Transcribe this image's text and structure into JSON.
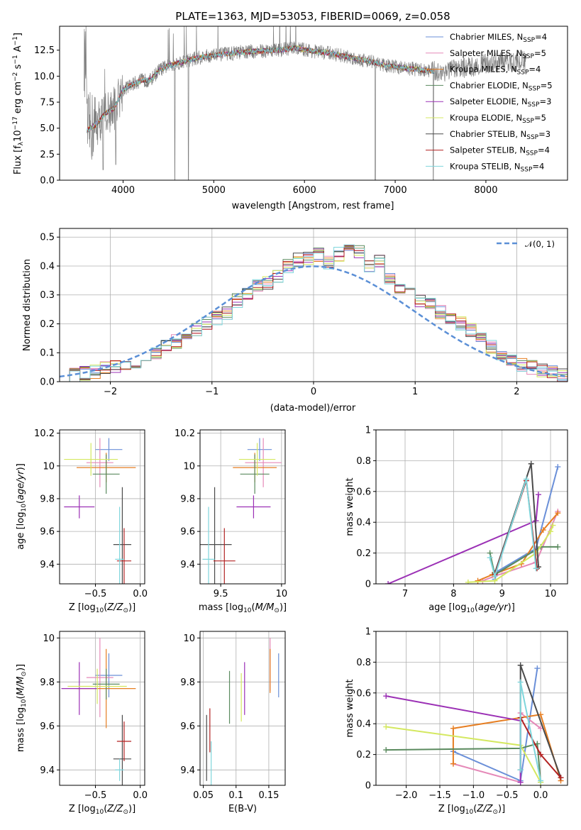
{
  "colors": {
    "Chabrier MILES": "#6a8fd8",
    "Salpeter MILES": "#e589b8",
    "Kroupa MILES": "#e67e22",
    "Chabrier ELODIE": "#5a8a5e",
    "Salpeter ELODIE": "#9b30b5",
    "Kroupa ELODIE": "#d4e860",
    "Chabrier STELIB": "#4a4a4a",
    "Salpeter STELIB": "#b22222",
    "Kroupa STELIB": "#7fd6dc",
    "data": "#808080",
    "normal": "#5b8fd6",
    "grid": "#b0b0b0"
  },
  "legend_spectrum": [
    {
      "name": "Chabrier MILES",
      "nssp": "4"
    },
    {
      "name": "Salpeter MILES",
      "nssp": "5"
    },
    {
      "name": "Kroupa MILES",
      "nssp": "4"
    },
    {
      "name": "Chabrier ELODIE",
      "nssp": "5"
    },
    {
      "name": "Salpeter ELODIE",
      "nssp": "3"
    },
    {
      "name": "Kroupa ELODIE",
      "nssp": "5"
    },
    {
      "name": "Chabrier STELIB",
      "nssp": "3"
    },
    {
      "name": "Salpeter STELIB",
      "nssp": "4"
    },
    {
      "name": "Kroupa STELIB",
      "nssp": "4"
    }
  ],
  "chart_data": [
    {
      "id": "spectrum",
      "type": "line",
      "title": "PLATE=1363, MJD=53053, FIBERID=0069, z=0.058",
      "xlabel": "wavelength [Angstrom, rest frame]",
      "ylabel": "Flux [f_λ 10^-17 erg cm^-2 s^-1 A^-1]",
      "xlim": [
        3300,
        8900
      ],
      "ylim": [
        0,
        14.8
      ],
      "xticks": [
        4000,
        5000,
        6000,
        7000,
        8000
      ],
      "yticks": [
        0.0,
        2.5,
        5.0,
        7.5,
        10.0,
        12.5
      ],
      "ytick_labels": [
        "0.0",
        "2.5",
        "5.0",
        "7.5",
        "10.0",
        "12.5"
      ],
      "grid": false,
      "legend": "upper right",
      "continuum": [
        [
          3600,
          4.8
        ],
        [
          3700,
          5.3
        ],
        [
          3800,
          6.4
        ],
        [
          3900,
          6.9
        ],
        [
          3950,
          7.8
        ],
        [
          4000,
          8.7
        ],
        [
          4100,
          9.2
        ],
        [
          4200,
          9.6
        ],
        [
          4300,
          9.6
        ],
        [
          4400,
          10.6
        ],
        [
          4500,
          11.0
        ],
        [
          4700,
          11.5
        ],
        [
          4900,
          11.9
        ],
        [
          5100,
          12.1
        ],
        [
          5300,
          12.3
        ],
        [
          5500,
          12.4
        ],
        [
          5700,
          12.5
        ],
        [
          5900,
          12.7
        ],
        [
          6100,
          12.4
        ],
        [
          6300,
          12.2
        ],
        [
          6500,
          11.8
        ],
        [
          6700,
          11.5
        ],
        [
          6900,
          11.0
        ],
        [
          7100,
          10.8
        ],
        [
          7300,
          10.6
        ],
        [
          7500,
          10.4
        ],
        [
          7700,
          10.7
        ],
        [
          7900,
          11.0
        ],
        [
          8100,
          11.3
        ],
        [
          8300,
          11.4
        ]
      ],
      "model_end": 7430,
      "data_end": 8450,
      "deep_features": [
        [
          4570,
          0.0
        ],
        [
          4720,
          0.0
        ],
        [
          6780,
          0.0
        ],
        [
          7420,
          0.0
        ],
        [
          3780,
          1.0
        ],
        [
          3920,
          1.5
        ]
      ]
    },
    {
      "id": "residuals",
      "type": "histogram",
      "xlabel": "(data-model)/error",
      "ylabel": "Normed distribution",
      "xlim": [
        -2.5,
        2.5
      ],
      "ylim": [
        0,
        0.53
      ],
      "xticks": [
        -2,
        -1,
        0,
        1,
        2
      ],
      "yticks": [
        0.0,
        0.1,
        0.2,
        0.3,
        0.4,
        0.5
      ],
      "ytick_labels": [
        "0.0",
        "0.1",
        "0.2",
        "0.3",
        "0.4",
        "0.5"
      ],
      "grid": true,
      "legend": "upper right",
      "legend_label": "𝒩(0, 1)",
      "bin_width": 0.1,
      "bin_start": -2.5,
      "base_values": [
        0.018,
        0.022,
        0.028,
        0.035,
        0.045,
        0.052,
        0.062,
        0.07,
        0.085,
        0.1,
        0.12,
        0.14,
        0.16,
        0.18,
        0.2,
        0.22,
        0.24,
        0.28,
        0.3,
        0.33,
        0.34,
        0.36,
        0.4,
        0.42,
        0.43,
        0.44,
        0.41,
        0.44,
        0.47,
        0.45,
        0.4,
        0.42,
        0.35,
        0.32,
        0.3,
        0.28,
        0.27,
        0.24,
        0.22,
        0.2,
        0.18,
        0.15,
        0.12,
        0.1,
        0.08,
        0.06,
        0.05,
        0.04,
        0.03,
        0.02
      ]
    },
    {
      "id": "age_vs_Z",
      "type": "errorbar",
      "xlabel": "Z [log10(Z/Z⊙)]",
      "ylabel": "age  [log10(age/yr)]",
      "xlim": [
        -0.9,
        0.05
      ],
      "ylim": [
        9.28,
        10.22
      ],
      "xticks": [
        -0.5,
        0.0
      ],
      "xtick_labels": [
        "−0.5",
        "0.0"
      ],
      "yticks": [
        9.4,
        9.6,
        9.8,
        10.0,
        10.2
      ],
      "grid": true,
      "points": [
        {
          "model": "Chabrier MILES",
          "x": -0.35,
          "xerr": 0.15,
          "y": 10.1,
          "yerr": 0.07
        },
        {
          "model": "Salpeter MILES",
          "x": -0.45,
          "xerr": 0.15,
          "y": 10.02,
          "yerr": 0.15
        },
        {
          "model": "Kroupa MILES",
          "x": -0.38,
          "xerr": 0.33,
          "y": 9.99,
          "yerr": 0.09
        },
        {
          "model": "Chabrier ELODIE",
          "x": -0.38,
          "xerr": 0.15,
          "y": 9.95,
          "yerr": 0.12
        },
        {
          "model": "Salpeter ELODIE",
          "x": -0.68,
          "xerr": 0.17,
          "y": 9.75,
          "yerr": 0.07
        },
        {
          "model": "Kroupa ELODIE",
          "x": -0.55,
          "xerr": 0.3,
          "y": 10.04,
          "yerr": 0.1
        },
        {
          "model": "Chabrier STELIB",
          "x": -0.2,
          "xerr": 0.1,
          "y": 9.52,
          "yerr": 0.35
        },
        {
          "model": "Salpeter STELIB",
          "x": -0.18,
          "xerr": 0.08,
          "y": 9.42,
          "yerr": 0.2
        },
        {
          "model": "Kroupa STELIB",
          "x": -0.23,
          "xerr": 0.05,
          "y": 9.43,
          "yerr": 0.32
        }
      ]
    },
    {
      "id": "age_vs_mass",
      "type": "errorbar",
      "xlabel": "mass [log10(M/M⊙)]",
      "ylabel": "",
      "xlim": [
        9.33,
        10.03
      ],
      "ylim": [
        9.28,
        10.22
      ],
      "xticks": [
        9.5,
        10.0
      ],
      "yticks": [
        9.4,
        9.6,
        9.8,
        10.0,
        10.2
      ],
      "grid": true,
      "points": [
        {
          "model": "Chabrier MILES",
          "x": 9.82,
          "xerr": 0.1,
          "y": 10.1,
          "yerr": 0.07
        },
        {
          "model": "Salpeter MILES",
          "x": 9.85,
          "xerr": 0.15,
          "y": 10.02,
          "yerr": 0.15
        },
        {
          "model": "Kroupa MILES",
          "x": 9.78,
          "xerr": 0.18,
          "y": 9.99,
          "yerr": 0.09
        },
        {
          "model": "Chabrier ELODIE",
          "x": 9.78,
          "xerr": 0.12,
          "y": 9.95,
          "yerr": 0.12
        },
        {
          "model": "Salpeter ELODIE",
          "x": 9.77,
          "xerr": 0.14,
          "y": 9.75,
          "yerr": 0.07
        },
        {
          "model": "Kroupa ELODIE",
          "x": 9.8,
          "xerr": 0.15,
          "y": 10.04,
          "yerr": 0.1
        },
        {
          "model": "Chabrier STELIB",
          "x": 9.45,
          "xerr": 0.14,
          "y": 9.52,
          "yerr": 0.35
        },
        {
          "model": "Salpeter STELIB",
          "x": 9.53,
          "xerr": 0.09,
          "y": 9.42,
          "yerr": 0.2
        },
        {
          "model": "Kroupa STELIB",
          "x": 9.4,
          "xerr": 0.05,
          "y": 9.43,
          "yerr": 0.32
        }
      ]
    },
    {
      "id": "weights_vs_age",
      "type": "line",
      "xlabel": "age  [log10(age/yr)]",
      "ylabel": "mass weight",
      "xlim": [
        6.4,
        10.35
      ],
      "ylim": [
        0,
        1.0
      ],
      "xticks": [
        7,
        8,
        9,
        10
      ],
      "yticks": [
        0.0,
        0.2,
        0.4,
        0.6,
        0.8,
        1.0
      ],
      "grid": true,
      "series": [
        {
          "model": "Chabrier MILES",
          "x": [
            8.85,
            8.9,
            9.7,
            10.15
          ],
          "y": [
            0.03,
            0.08,
            0.23,
            0.76
          ]
        },
        {
          "model": "Salpeter MILES",
          "x": [
            8.6,
            8.85,
            9.7,
            10.15
          ],
          "y": [
            0.02,
            0.05,
            0.14,
            0.47
          ]
        },
        {
          "model": "Kroupa MILES",
          "x": [
            8.5,
            8.8,
            9.4,
            9.85,
            10.15
          ],
          "y": [
            0.02,
            0.06,
            0.13,
            0.35,
            0.46
          ]
        },
        {
          "model": "Chabrier ELODIE",
          "x": [
            8.75,
            8.85,
            9.8,
            10.15
          ],
          "y": [
            0.2,
            0.06,
            0.24,
            0.24
          ]
        },
        {
          "model": "Salpeter ELODIE",
          "x": [
            6.65,
            9.7,
            9.75
          ],
          "y": [
            0.0,
            0.41,
            0.58
          ]
        },
        {
          "model": "Kroupa ELODIE",
          "x": [
            8.3,
            8.85,
            9.7,
            10.0,
            10.05
          ],
          "y": [
            0.01,
            0.02,
            0.2,
            0.34,
            0.38
          ]
        },
        {
          "model": "Chabrier STELIB",
          "x": [
            8.85,
            9.6,
            9.75
          ],
          "y": [
            0.07,
            0.78,
            0.11
          ]
        },
        {
          "model": "Salpeter STELIB",
          "x": [
            8.85,
            9.5,
            9.72
          ],
          "y": [
            0.06,
            0.67,
            0.1
          ]
        },
        {
          "model": "Kroupa STELIB",
          "x": [
            8.75,
            8.85,
            9.5,
            9.7
          ],
          "y": [
            0.17,
            0.05,
            0.68,
            0.1
          ]
        }
      ]
    },
    {
      "id": "mass_vs_Z",
      "type": "errorbar",
      "xlabel": "Z [log10(Z/Z⊙)]",
      "ylabel": "mass [log10(M/M⊙)]",
      "xlim": [
        -0.9,
        0.05
      ],
      "ylim": [
        9.33,
        10.03
      ],
      "xticks": [
        -0.5,
        0.0
      ],
      "xtick_labels": [
        "−0.5",
        "0.0"
      ],
      "yticks": [
        9.4,
        9.6,
        9.8,
        10.0
      ],
      "grid": true,
      "points": [
        {
          "model": "Chabrier MILES",
          "x": -0.35,
          "xerr": 0.15,
          "y": 9.83,
          "yerr": 0.1
        },
        {
          "model": "Salpeter MILES",
          "x": -0.45,
          "xerr": 0.15,
          "y": 9.82,
          "yerr": 0.18
        },
        {
          "model": "Kroupa MILES",
          "x": -0.38,
          "xerr": 0.33,
          "y": 9.77,
          "yerr": 0.18
        },
        {
          "model": "Chabrier ELODIE",
          "x": -0.38,
          "xerr": 0.15,
          "y": 9.79,
          "yerr": 0.07
        },
        {
          "model": "Salpeter ELODIE",
          "x": -0.68,
          "xerr": 0.2,
          "y": 9.77,
          "yerr": 0.12
        },
        {
          "model": "Kroupa ELODIE",
          "x": -0.48,
          "xerr": 0.33,
          "y": 9.78,
          "yerr": 0.08
        },
        {
          "model": "Chabrier STELIB",
          "x": -0.2,
          "xerr": 0.1,
          "y": 9.45,
          "yerr": 0.2
        },
        {
          "model": "Salpeter STELIB",
          "x": -0.18,
          "xerr": 0.08,
          "y": 9.53,
          "yerr": 0.09
        },
        {
          "model": "Kroupa STELIB",
          "x": -0.23,
          "xerr": 0.05,
          "y": 9.4,
          "yerr": 0.05
        }
      ]
    },
    {
      "id": "mass_vs_ebv",
      "type": "errorbar",
      "xlabel": "E(B-V)",
      "ylabel": "",
      "xlim": [
        0.045,
        0.175
      ],
      "ylim": [
        9.33,
        10.03
      ],
      "xticks": [
        0.05,
        0.1,
        0.15
      ],
      "yticks": [
        9.4,
        9.6,
        9.8,
        10.0
      ],
      "grid": true,
      "points": [
        {
          "model": "Chabrier MILES",
          "x": 0.165,
          "xerr": 0.0,
          "y": 9.83,
          "yerr": 0.1
        },
        {
          "model": "Salpeter MILES",
          "x": 0.152,
          "xerr": 0.0,
          "y": 9.88,
          "yerr": 0.12
        },
        {
          "model": "Kroupa MILES",
          "x": 0.152,
          "xerr": 0.0,
          "y": 9.85,
          "yerr": 0.1
        },
        {
          "model": "Chabrier ELODIE",
          "x": 0.09,
          "xerr": 0.0,
          "y": 9.73,
          "yerr": 0.12
        },
        {
          "model": "Salpeter ELODIE",
          "x": 0.113,
          "xerr": 0.0,
          "y": 9.77,
          "yerr": 0.12
        },
        {
          "model": "Kroupa ELODIE",
          "x": 0.108,
          "xerr": 0.0,
          "y": 9.73,
          "yerr": 0.11
        },
        {
          "model": "Chabrier STELIB",
          "x": 0.055,
          "xerr": 0.0,
          "y": 9.5,
          "yerr": 0.15
        },
        {
          "model": "Salpeter STELIB",
          "x": 0.06,
          "xerr": 0.0,
          "y": 9.58,
          "yerr": 0.1
        },
        {
          "model": "Kroupa STELIB",
          "x": 0.062,
          "xerr": 0.0,
          "y": 9.43,
          "yerr": 0.1
        }
      ]
    },
    {
      "id": "weights_vs_Z",
      "type": "line",
      "xlabel": "Z [log10(Z/Z⊙)]",
      "ylabel": "mass weight",
      "xlim": [
        -2.45,
        0.4
      ],
      "ylim": [
        0,
        1.0
      ],
      "xticks": [
        -2.0,
        -1.5,
        -1.0,
        -0.5,
        0.0
      ],
      "xtick_labels": [
        "−2.0",
        "−1.5",
        "−1.0",
        "−0.5",
        "0.0"
      ],
      "yticks": [
        0.0,
        0.2,
        0.4,
        0.6,
        0.8,
        1.0
      ],
      "grid": true,
      "series": [
        {
          "model": "Chabrier MILES",
          "x": [
            -1.3,
            -0.3,
            -0.05
          ],
          "y": [
            0.22,
            0.03,
            0.76
          ]
        },
        {
          "model": "Salpeter MILES",
          "x": [
            -1.3,
            -0.3,
            -0.3,
            0.0
          ],
          "y": [
            0.14,
            0.02,
            0.47,
            0.37
          ]
        },
        {
          "model": "Kroupa MILES",
          "x": [
            -1.3,
            -1.3,
            0.0,
            0.3
          ],
          "y": [
            0.14,
            0.37,
            0.46,
            0.03
          ]
        },
        {
          "model": "Chabrier ELODIE",
          "x": [
            -2.3,
            -0.3,
            -0.3,
            -0.05,
            0.0
          ],
          "y": [
            0.23,
            0.24,
            0.24,
            0.27,
            0.02
          ]
        },
        {
          "model": "Salpeter ELODIE",
          "x": [
            -2.3,
            -0.3,
            -0.3
          ],
          "y": [
            0.58,
            0.42,
            0.02
          ]
        },
        {
          "model": "Kroupa ELODIE",
          "x": [
            -2.3,
            -0.3,
            0.0
          ],
          "y": [
            0.38,
            0.26,
            0.02
          ]
        },
        {
          "model": "Chabrier STELIB",
          "x": [
            -0.3,
            -0.3,
            0.3
          ],
          "y": [
            0.1,
            0.78,
            0.05
          ]
        },
        {
          "model": "Salpeter STELIB",
          "x": [
            -0.3,
            0.0,
            0.3
          ],
          "y": [
            0.44,
            0.2,
            0.05
          ]
        },
        {
          "model": "Kroupa STELIB",
          "x": [
            -0.3,
            -0.3,
            0.0
          ],
          "y": [
            0.1,
            0.67,
            0.03
          ]
        }
      ]
    }
  ]
}
